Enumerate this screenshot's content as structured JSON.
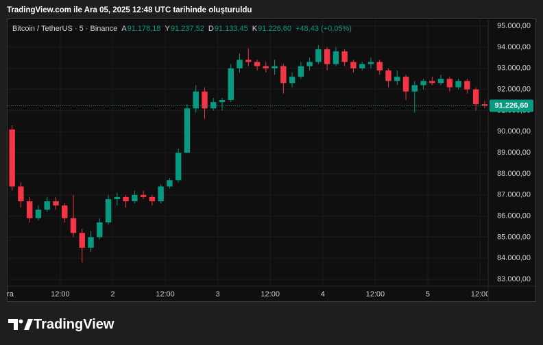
{
  "attribution": "TradingView.com ile Ara 05, 2025 12:48 UTC tarihinde oluşturuldu",
  "brand": "TradingView",
  "chart_data": {
    "type": "candlestick",
    "title": "Bitcoin / TetherUS · 5 · Binance",
    "ohlc_legend": [
      {
        "label": "A",
        "value": "91.178,18"
      },
      {
        "label": "Y",
        "value": "91.237,52"
      },
      {
        "label": "D",
        "value": "91.133,45"
      },
      {
        "label": "K",
        "value": "91.226,60"
      }
    ],
    "change": "+48,43 (+0,05%)",
    "up_color": "#089981",
    "down_color": "#f23645",
    "grid": true,
    "x": [
      1,
      3,
      5,
      7,
      9,
      11,
      13,
      15,
      17,
      19,
      21,
      23,
      25,
      27,
      29,
      31,
      33,
      35,
      37,
      39,
      41,
      43,
      45,
      47,
      49,
      51,
      53,
      55,
      57,
      59,
      61,
      63,
      65,
      67,
      69,
      71,
      73,
      75,
      77,
      79,
      81,
      83,
      85,
      87,
      89,
      91,
      93,
      95,
      97,
      99,
      101,
      103,
      105,
      107,
      109
    ],
    "open": [
      90100,
      87400,
      86700,
      85900,
      86300,
      86700,
      86500,
      85900,
      85200,
      84500,
      85000,
      85700,
      86800,
      86900,
      86700,
      87000,
      86900,
      86700,
      87400,
      87700,
      89000,
      91100,
      91900,
      91100,
      91400,
      91500,
      93000,
      93400,
      93300,
      93100,
      93000,
      93100,
      92300,
      92600,
      93100,
      93300,
      93900,
      93200,
      93800,
      93300,
      93000,
      93200,
      93300,
      92900,
      92400,
      92600,
      91900,
      92200,
      92400,
      92300,
      92500,
      92100,
      92400,
      92000,
      91300
    ],
    "high": [
      90300,
      87600,
      86900,
      86500,
      86900,
      86900,
      86600,
      87000,
      85400,
      85300,
      85900,
      87000,
      87100,
      87000,
      87200,
      87200,
      87000,
      87500,
      87800,
      89200,
      91300,
      92200,
      92100,
      91600,
      91600,
      93200,
      93700,
      93950,
      93400,
      93300,
      93400,
      93200,
      92800,
      93300,
      93500,
      94100,
      94000,
      94000,
      93900,
      93400,
      93300,
      93500,
      93400,
      93000,
      92900,
      92700,
      92400,
      92500,
      92600,
      92700,
      92600,
      92500,
      92500,
      92100,
      91450
    ],
    "low": [
      87200,
      86400,
      85700,
      85800,
      86200,
      86300,
      85700,
      85000,
      83800,
      84300,
      84900,
      85600,
      86500,
      86400,
      86600,
      86800,
      86500,
      86600,
      87300,
      87600,
      89000,
      90900,
      90600,
      91000,
      91000,
      91400,
      92800,
      93100,
      92900,
      92800,
      92700,
      91800,
      92100,
      92500,
      92900,
      93200,
      92900,
      93100,
      93100,
      92800,
      92900,
      93000,
      92700,
      92100,
      92200,
      91500,
      90900,
      92000,
      92200,
      92200,
      91900,
      92000,
      91800,
      91000,
      91100
    ],
    "close": [
      87400,
      86700,
      85900,
      86300,
      86700,
      86500,
      85900,
      85200,
      84500,
      85000,
      85700,
      86800,
      86900,
      86700,
      87000,
      86900,
      86700,
      87400,
      87700,
      89000,
      91100,
      91900,
      91100,
      91400,
      91500,
      93000,
      93400,
      93300,
      93100,
      93000,
      93100,
      92300,
      92600,
      93100,
      93300,
      93900,
      93200,
      93800,
      93300,
      93000,
      93200,
      93300,
      92900,
      92400,
      92600,
      91900,
      92200,
      92400,
      92300,
      92500,
      92100,
      92400,
      92000,
      91300,
      91226.6
    ],
    "xlim": [
      -0.2,
      109.8
    ],
    "xticks": [
      {
        "value": 0,
        "label": "Ara"
      },
      {
        "value": 12,
        "label": "12:00"
      },
      {
        "value": 24,
        "label": "2"
      },
      {
        "value": 36,
        "label": "12:00"
      },
      {
        "value": 48,
        "label": "3"
      },
      {
        "value": 60,
        "label": "12:00"
      },
      {
        "value": 72,
        "label": "4"
      },
      {
        "value": 84,
        "label": "12:00"
      },
      {
        "value": 96,
        "label": "5"
      },
      {
        "value": 108,
        "label": "12:00"
      }
    ],
    "ylim": [
      82680,
      95360
    ],
    "yticks": [
      {
        "value": 83000,
        "label": "83.000,00"
      },
      {
        "value": 84000,
        "label": "84.000,00"
      },
      {
        "value": 85000,
        "label": "85.000,00"
      },
      {
        "value": 86000,
        "label": "86.000,00"
      },
      {
        "value": 87000,
        "label": "87.000,00"
      },
      {
        "value": 88000,
        "label": "88.000,00"
      },
      {
        "value": 89000,
        "label": "89.000,00"
      },
      {
        "value": 90000,
        "label": "90.000,00"
      },
      {
        "value": 91000,
        "label": "91.000,00"
      },
      {
        "value": 92000,
        "label": "92.000,00"
      },
      {
        "value": 93000,
        "label": "93.000,00"
      },
      {
        "value": 94000,
        "label": "94.000,00"
      },
      {
        "value": 95000,
        "label": "95.000,00"
      }
    ],
    "last_price": {
      "value": 91226.6,
      "label": "91.226,60"
    }
  }
}
